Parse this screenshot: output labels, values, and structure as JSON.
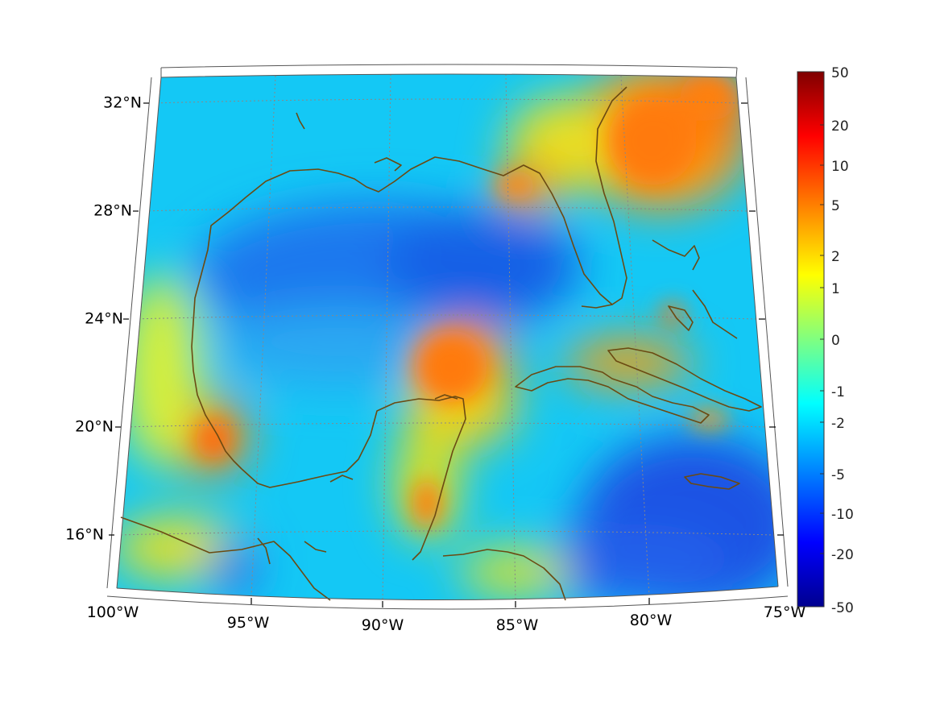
{
  "map": {
    "lat_labels": [
      "32°N",
      "28°N",
      "24°N",
      "20°N",
      "16°N"
    ],
    "lon_labels": [
      "100°W",
      "95°W",
      "90°W",
      "85°W",
      "80°W",
      "75°W"
    ],
    "coastline_color": "#6b4a12",
    "colormap": "jet"
  },
  "colorbar": {
    "tick_labels": [
      "50",
      "20",
      "10",
      "5",
      "2",
      "1",
      "0",
      "-1",
      "-2",
      "-5",
      "-10",
      "-20",
      "-50"
    ],
    "colors": [
      "#7f0000",
      "#ff0000",
      "#ff8000",
      "#ffff00",
      "#80ff80",
      "#00ffff",
      "#0080ff",
      "#0000ff",
      "#00008f"
    ]
  }
}
